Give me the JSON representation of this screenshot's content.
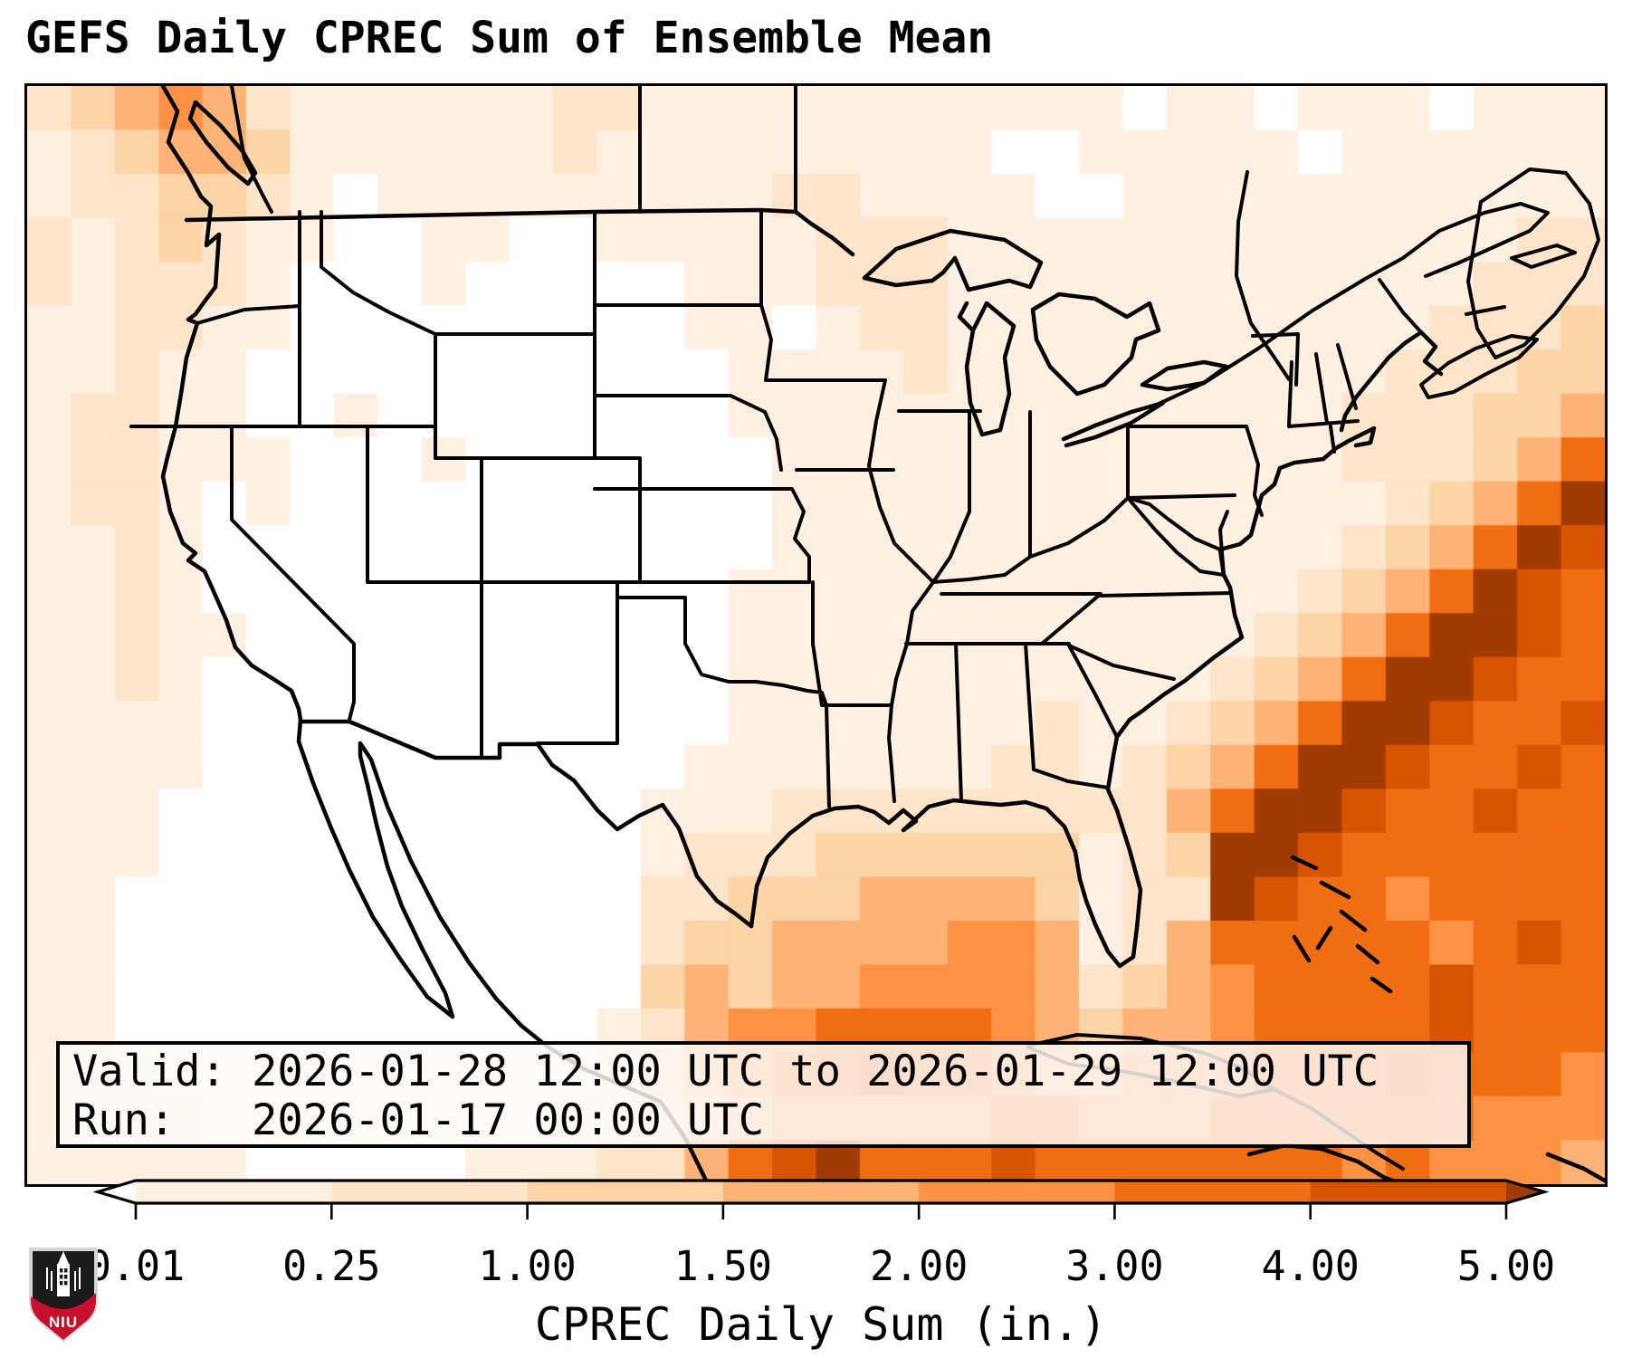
{
  "title": "GEFS Daily CPREC Sum of Ensemble Mean",
  "info_box": {
    "valid_line": "Valid: 2026-01-28 12:00 UTC to 2026-01-29 12:00 UTC",
    "run_line": "Run:   2026-01-17 00:00 UTC"
  },
  "colorbar": {
    "label": "CPREC Daily Sum (in.)",
    "tick_labels": [
      "0.01",
      "0.25",
      "1.00",
      "1.50",
      "2.00",
      "3.00",
      "4.00",
      "5.00"
    ]
  },
  "logo": {
    "label": "NIU",
    "shield_black": "#1b1b1b",
    "shield_red": "#c8102e",
    "border_silver": "#d3d5d8"
  },
  "chart_data": {
    "type": "heatmap",
    "title": "GEFS Daily CPREC Sum of Ensemble Mean",
    "units": "in.",
    "colorbar_label": "CPREC Daily Sum (in.)",
    "levels": [
      0.01,
      0.25,
      1.0,
      1.5,
      2.0,
      3.0,
      4.0,
      5.0
    ],
    "colorbar_extend": "both",
    "colors": {
      "under": "#ffffff",
      "bins": [
        "#fff0e1",
        "#fee4c9",
        "#fdd3a8",
        "#fdb376",
        "#fd9245",
        "#f16d13",
        "#d95402"
      ],
      "over": "#a23a03"
    },
    "valid": "2026-01-28 12:00 UTC to 2026-01-29 12:00 UTC",
    "run": "2026-01-17 00:00 UTC",
    "grid": {
      "cols": 36,
      "rows": 25,
      "encoding": "one digit per cell: 0 = <0.01 in (white), 1-7 = successive color bins between levels, 8 = >5.00 in (darkest)",
      "cells": [
        "234542111111221111111111101101110111",
        "123443111111211111111100111110111111",
        "122332101111111112211110011111111111",
        "212321100110011111222111111111111122",
        "212221000100000111222111111111111222",
        "112211000000000110122111111111112223",
        "112110000000000011112111111111122233",
        "122110010000000011111111111111222334",
        "122111000100000001111111111111222346",
        "122101000000000001111111111111123468",
        "112100000000000001111111111111234687",
        "112100000000000011111111111112346876",
        "112110000000000011111111111123468876",
        "112100000000000011111111111234688766",
        "111100000000000011111112112346887667",
        "111100000000000111111122123468876676",
        "111000000000001112222222224688766766",
        "111000000000001222333333123887666666",
        "110000000000002233344443122876656666",
        "110000000000002334444554124666665676",
        "110000000000003434455554234566667666",
        "110000000000012455666654344566667666",
        "111000000000013456676654455566676665",
        "111100000000112345555566555666666555",
        "111110000011122467866676666666565554"
      ]
    }
  }
}
